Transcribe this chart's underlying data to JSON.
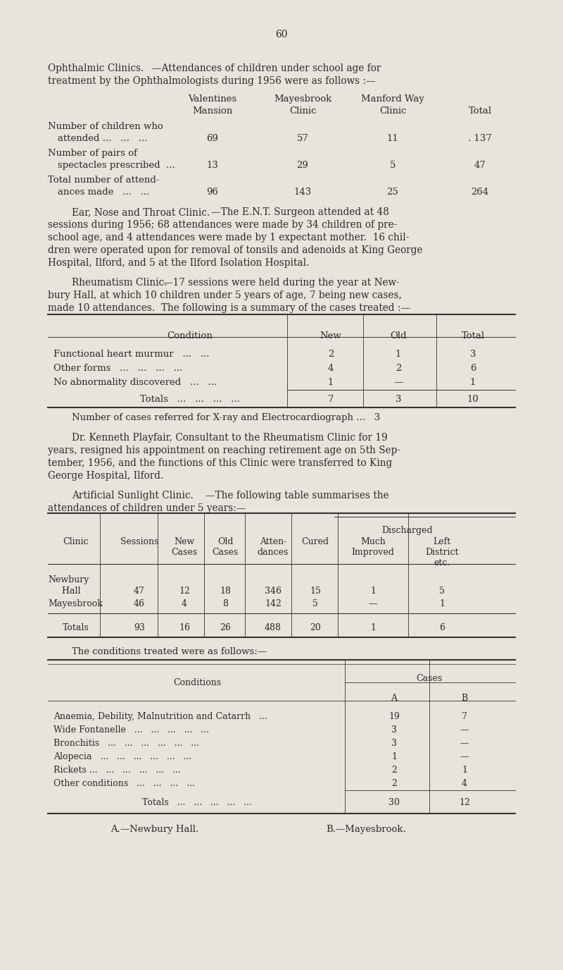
{
  "page_number": "60",
  "bg_color": "#e8e4dc",
  "text_color": "#2a2a2a",
  "section1_heading_sc": "Ophthalmic Clinics.",
  "section1_heading_rest": "—Attendances of children under school age for",
  "section1_heading_line2": "treatment by the Ophthalmologists during 1956 were as follows :—",
  "section2_heading_sc": "Ear, Nose and Throat Clinic.",
  "section2_heading_rest": "—The E.N.T. Surgeon attended at 48",
  "section2_lines": [
    "sessions during 1956; 68 attendances were made by 34 children of pre-",
    "school age, and 4 attendances were made by 1 expectant mother.  16 chil-",
    "dren were operated upon for removal of tonsils and adenoids at King George",
    "Hospital, Ilford, and 5 at the Ilford Isolation Hospital."
  ],
  "section3_heading_sc": "Rheumatism Clinic.",
  "section3_heading_rest": "—17 sessions were held during the year at New-",
  "section3_lines": [
    "bury Hall, at which 10 children under 5 years of age, 7 being new cases,",
    "made 10 attendances.  The following is a summary of the cases treated :—"
  ],
  "section3_rows": [
    [
      "Functional heart murmur   ...   ...",
      "2",
      "1",
      "3"
    ],
    [
      "Other forms   ...   ...   ...   ...",
      "4",
      "2",
      "6"
    ],
    [
      "No abnormality discovered   ...   ...",
      "1",
      "—",
      "1"
    ]
  ],
  "section3_totals": [
    "Totals   ...   ...   ...   ...",
    "7",
    "3",
    "10"
  ],
  "section3_xray": "Number of cases referred for X-ray and Electrocardiograph ...   3",
  "section3b_lines": [
    "Dr. Kenneth Playfair, Consultant to the Rheumatism Clinic for 19",
    "years, resigned his appointment on reaching retirement age on 5th Sep-",
    "tember, 1956, and the functions of this Clinic were transferred to King",
    "George Hospital, Ilford."
  ],
  "section4_heading_sc": "Artificial Sunlight Clinic.",
  "section4_heading_rest": "—The following table summarises the",
  "section4_heading_line2": "attendances of children under 5 years:—",
  "section4_rows": [
    [
      "Newbury",
      "Hall",
      "47",
      "12",
      "18",
      "346",
      "15",
      "1",
      "5"
    ],
    [
      "Mayesbrook",
      "",
      "46",
      "4",
      "8",
      "142",
      "5",
      "—",
      "1"
    ]
  ],
  "section4_totals": [
    "Totals",
    "93",
    "16",
    "26",
    "488",
    "20",
    "1",
    "6"
  ],
  "section5_intro": "The conditions treated were as follows:—",
  "section5_rows": [
    [
      "Anaemia, Debility, Malnutrition and Catarrh   ...",
      "19",
      "7"
    ],
    [
      "Wide Fontanelle   ...   ...   ...   ...   ...",
      "3",
      "—"
    ],
    [
      "Bronchitis   ...   ...   ...   ...   ...   ...",
      "3",
      "—"
    ],
    [
      "Alopecia   ...   ...   ...   ...   ...   ...",
      "1",
      "—"
    ],
    [
      "Rickets ...   ...   ...   ...   ...   ...",
      "2",
      "1"
    ],
    [
      "Other conditions   ...   ...   ...   ...",
      "2",
      "4"
    ]
  ],
  "section5_totals": [
    "Totals   ...   ...   ...   ...   ...",
    "30",
    "12"
  ],
  "section5_footer_a": "A.—Newbury Hall.",
  "section5_footer_b": "B.—Mayesbrook."
}
